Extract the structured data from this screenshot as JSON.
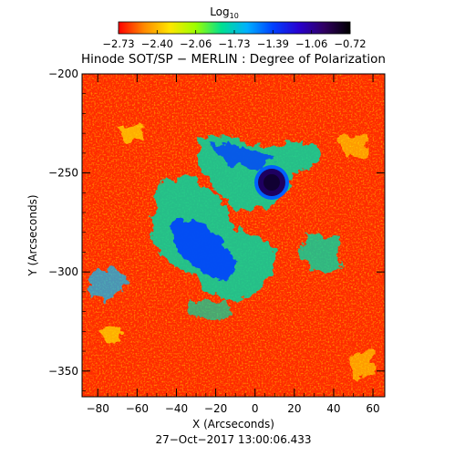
{
  "colorbar": {
    "label": "Log",
    "label_sub": "10",
    "ticks": [
      "−2.73",
      "−2.40",
      "−2.06",
      "−1.73",
      "−1.39",
      "−1.06",
      "−0.72"
    ],
    "colors": [
      "#ff0000",
      "#ff8a00",
      "#ffe600",
      "#9cff00",
      "#00e090",
      "#00b0ff",
      "#0040ff",
      "#2800d0",
      "#300060",
      "#000000"
    ]
  },
  "title": "Hinode SOT/SP − MERLIN : Degree of Polarization",
  "xaxis": {
    "label": "X (Arcseconds)",
    "ticks": [
      "−80",
      "−60",
      "−40",
      "−20",
      "0",
      "20",
      "40",
      "60"
    ],
    "range": [
      -88,
      66
    ]
  },
  "yaxis": {
    "label": "Y (Arcseconds)",
    "ticks": [
      "−200",
      "−250",
      "−300",
      "−350"
    ],
    "range": [
      -363,
      -200
    ]
  },
  "timestamp": "27−Oct−2017 13:00:06.433",
  "map": {
    "background_color": "#ff2a00",
    "sunspot_color": "#1e0060"
  }
}
